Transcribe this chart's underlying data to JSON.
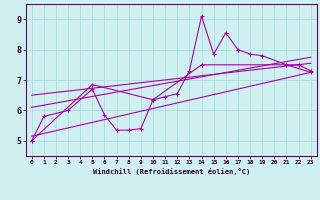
{
  "xlabel": "Windchill (Refroidissement éolien,°C)",
  "bg_color": "#cff0f0",
  "grid_color": "#aadddd",
  "line_color": "#aa00aa",
  "xlim": [
    -0.5,
    23.5
  ],
  "ylim": [
    4.5,
    9.5
  ],
  "yticks": [
    5,
    6,
    7,
    8,
    9
  ],
  "xticks": [
    0,
    1,
    2,
    3,
    4,
    5,
    6,
    7,
    8,
    9,
    10,
    11,
    12,
    13,
    14,
    15,
    16,
    17,
    18,
    19,
    20,
    21,
    22,
    23
  ],
  "series1_x": [
    0,
    1,
    3,
    5,
    6,
    7,
    8,
    9,
    10,
    11,
    12,
    13,
    14,
    15,
    16,
    17,
    18,
    19,
    21,
    22,
    23
  ],
  "series1_y": [
    5.0,
    5.8,
    6.0,
    6.7,
    5.85,
    5.35,
    5.35,
    5.4,
    6.35,
    6.45,
    6.55,
    7.3,
    9.1,
    7.85,
    8.55,
    8.0,
    7.85,
    7.8,
    7.5,
    7.5,
    7.3
  ],
  "series2_x": [
    0,
    5,
    10,
    14,
    21,
    23
  ],
  "series2_y": [
    5.0,
    6.85,
    6.35,
    7.5,
    7.5,
    7.25
  ],
  "trend1_x": [
    0,
    23
  ],
  "trend1_y": [
    6.1,
    7.75
  ],
  "trend2_x": [
    0,
    23
  ],
  "trend2_y": [
    5.15,
    7.25
  ],
  "trend3_x": [
    0,
    23
  ],
  "trend3_y": [
    6.5,
    7.55
  ]
}
